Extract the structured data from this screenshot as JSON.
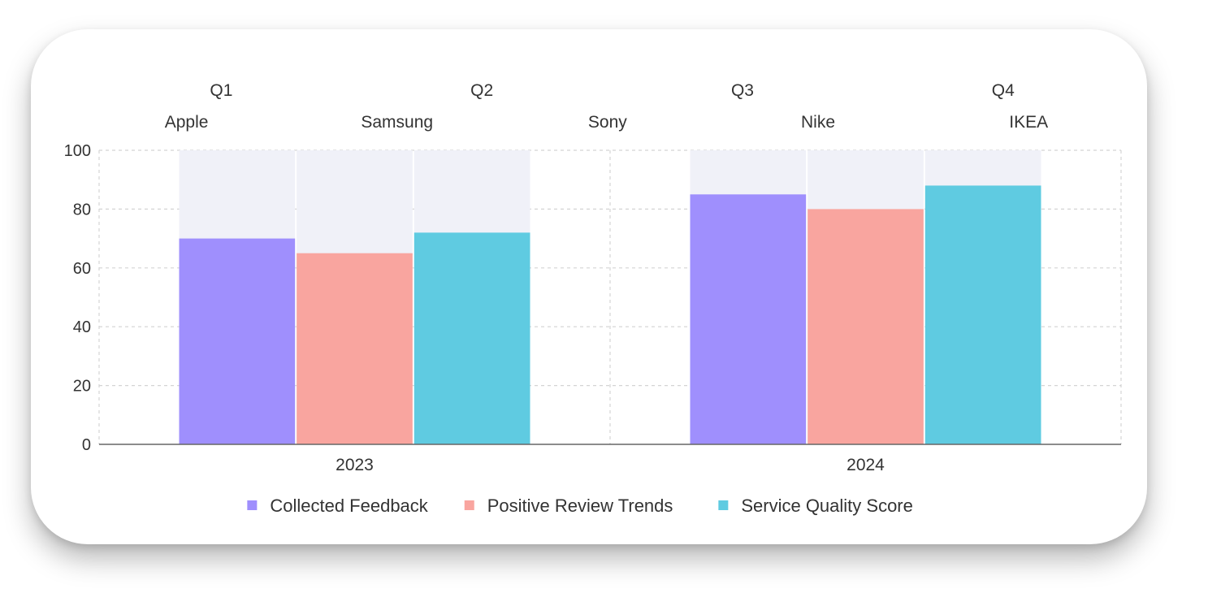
{
  "chart_data": {
    "type": "bar",
    "title": "",
    "xlabel": "",
    "ylabel": "",
    "ylim": [
      0,
      100
    ],
    "yticks": [
      0,
      20,
      40,
      60,
      80,
      100
    ],
    "grid": true,
    "background_bar_max": 100,
    "categories": [
      "2023",
      "2024"
    ],
    "secondary_axis_top": [
      "Q1",
      "Q2",
      "Q3",
      "Q4"
    ],
    "tertiary_axis_top": [
      "Apple",
      "Samsung",
      "Sony",
      "Nike",
      "IKEA"
    ],
    "series": [
      {
        "name": "Collected Feedback",
        "color": "#9f8ffd",
        "values": [
          70,
          85
        ]
      },
      {
        "name": "Positive Review Trends",
        "color": "#f9a59f",
        "values": [
          65,
          80
        ]
      },
      {
        "name": "Service Quality Score",
        "color": "#5fcbe1",
        "values": [
          72,
          88
        ]
      }
    ],
    "legend_position": "bottom"
  }
}
